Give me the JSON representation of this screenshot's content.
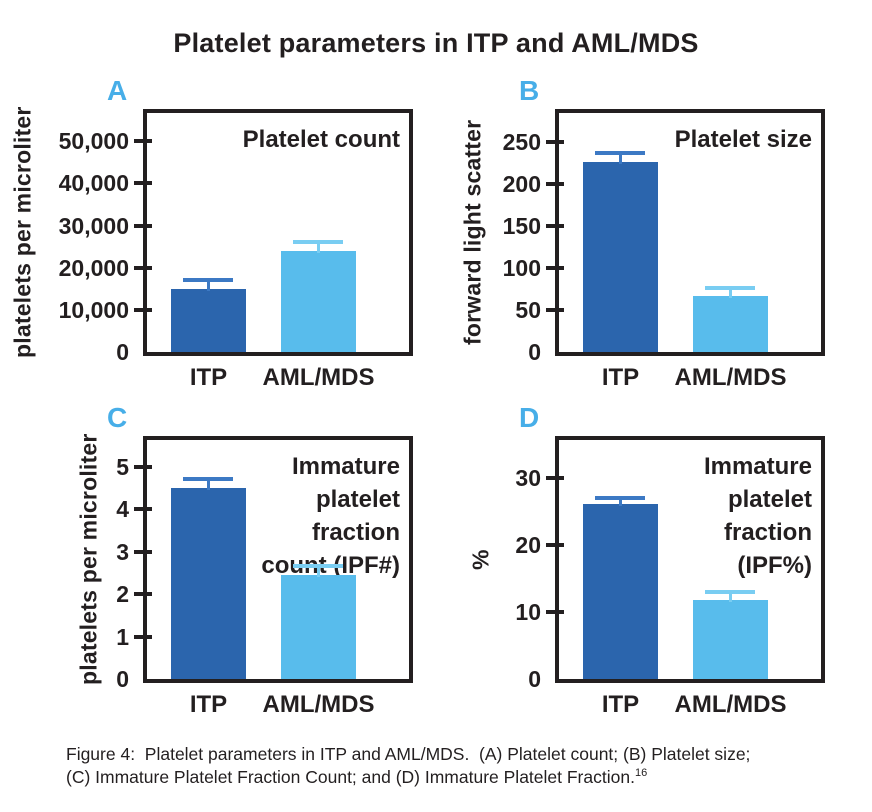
{
  "title": "Platelet parameters in ITP and AML/MDS",
  "colors": {
    "text": "#231F20",
    "frame": "#231F20",
    "panel_letter": "#47AEE8",
    "bars": [
      "#2B65AD",
      "#58BCEC"
    ],
    "error_bars": [
      "#3C79C4",
      "#79CDF2"
    ]
  },
  "chart_data": [
    {
      "id": "A",
      "type": "bar",
      "panel_label": "A",
      "inner_title": "Platelet count",
      "ylabel": "platelets per microliter",
      "categories": [
        "ITP",
        "AML/MDS"
      ],
      "values": [
        15000,
        24000
      ],
      "error_top": [
        17500,
        26500
      ],
      "yticks": [
        {
          "v": 0,
          "label": "0"
        },
        {
          "v": 10000,
          "label": "10,000"
        },
        {
          "v": 20000,
          "label": "20,000"
        },
        {
          "v": 30000,
          "label": "30,000"
        },
        {
          "v": 40000,
          "label": "40,000"
        },
        {
          "v": 50000,
          "label": "50,000"
        }
      ],
      "ylim": [
        0,
        56700
      ],
      "grid": false,
      "legend": "none"
    },
    {
      "id": "B",
      "type": "bar",
      "panel_label": "B",
      "inner_title": "Platelet size",
      "ylabel": "forward light scatter",
      "categories": [
        "ITP",
        "AML/MDS"
      ],
      "values": [
        226,
        67
      ],
      "error_top": [
        239,
        78
      ],
      "yticks": [
        {
          "v": 0,
          "label": "0"
        },
        {
          "v": 50,
          "label": "50"
        },
        {
          "v": 100,
          "label": "100"
        },
        {
          "v": 150,
          "label": "150"
        },
        {
          "v": 200,
          "label": "200"
        },
        {
          "v": 250,
          "label": "250"
        }
      ],
      "ylim": [
        0,
        284
      ],
      "grid": false,
      "legend": "none"
    },
    {
      "id": "C",
      "type": "bar",
      "panel_label": "C",
      "inner_title": "Immature\nplatelet\nfraction\ncount (IPF#)",
      "ylabel": "platelets per microliter",
      "categories": [
        "ITP",
        "AML/MDS"
      ],
      "values": [
        4.5,
        2.45
      ],
      "error_top": [
        4.75,
        2.7
      ],
      "yticks": [
        {
          "v": 0,
          "label": "0"
        },
        {
          "v": 1,
          "label": "1"
        },
        {
          "v": 2,
          "label": "2"
        },
        {
          "v": 3,
          "label": "3"
        },
        {
          "v": 4,
          "label": "4"
        },
        {
          "v": 5,
          "label": "5"
        }
      ],
      "ylim": [
        0,
        5.63
      ],
      "grid": false,
      "legend": "none"
    },
    {
      "id": "D",
      "type": "bar",
      "panel_label": "D",
      "inner_title": "Immature\nplatelet\nfraction\n(IPF%)",
      "ylabel": "%",
      "categories": [
        "ITP",
        "AML/MDS"
      ],
      "values": [
        26,
        11.8
      ],
      "error_top": [
        27.3,
        13.2
      ],
      "yticks": [
        {
          "v": 0,
          "label": "0"
        },
        {
          "v": 10,
          "label": "10"
        },
        {
          "v": 20,
          "label": "20"
        },
        {
          "v": 30,
          "label": "30"
        }
      ],
      "ylim": [
        0,
        35.6
      ],
      "grid": false,
      "legend": "none"
    }
  ],
  "caption": {
    "line1": "Figure 4:  Platelet parameters in ITP and AML/MDS.  (A) Platelet count; (B) Platelet size;",
    "line2": "(C) Immature Platelet Fraction Count; and (D) Immature Platelet Fraction.",
    "ref": "16"
  }
}
